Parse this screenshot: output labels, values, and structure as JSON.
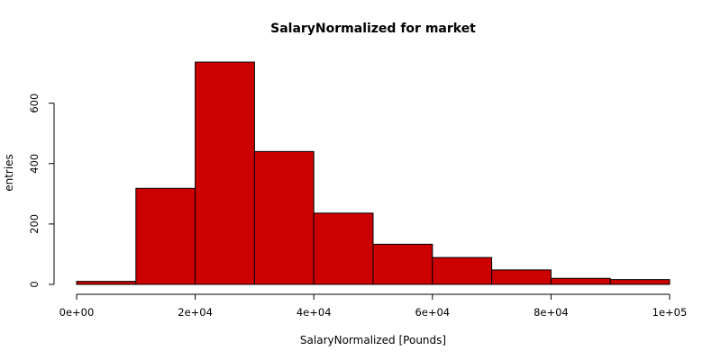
{
  "chart_data": {
    "type": "histogram",
    "title": "SalaryNormalized for market",
    "xlabel": "SalaryNormalized [Pounds]",
    "ylabel": "entries",
    "bins": [
      {
        "x0": 0,
        "x1": 10000,
        "count": 10
      },
      {
        "x0": 10000,
        "x1": 20000,
        "count": 318
      },
      {
        "x0": 20000,
        "x1": 30000,
        "count": 736
      },
      {
        "x0": 30000,
        "x1": 40000,
        "count": 440
      },
      {
        "x0": 40000,
        "x1": 50000,
        "count": 236
      },
      {
        "x0": 50000,
        "x1": 60000,
        "count": 133
      },
      {
        "x0": 60000,
        "x1": 70000,
        "count": 89
      },
      {
        "x0": 70000,
        "x1": 80000,
        "count": 48
      },
      {
        "x0": 80000,
        "x1": 90000,
        "count": 20
      },
      {
        "x0": 90000,
        "x1": 100000,
        "count": 16
      }
    ],
    "xlim": [
      0,
      100000
    ],
    "ylim": [
      0,
      736
    ],
    "x_ticks": [
      {
        "value": 0,
        "label": "0e+00"
      },
      {
        "value": 20000,
        "label": "2e+04"
      },
      {
        "value": 40000,
        "label": "4e+04"
      },
      {
        "value": 60000,
        "label": "6e+04"
      },
      {
        "value": 80000,
        "label": "8e+04"
      },
      {
        "value": 100000,
        "label": "1e+05"
      }
    ],
    "y_ticks": [
      {
        "value": 0,
        "label": "0"
      },
      {
        "value": 200,
        "label": "200"
      },
      {
        "value": 400,
        "label": "400"
      },
      {
        "value": 600,
        "label": "600"
      }
    ],
    "bar_color": "#cc0000",
    "bar_stroke": "#000000",
    "grid": false,
    "legend": "none"
  }
}
